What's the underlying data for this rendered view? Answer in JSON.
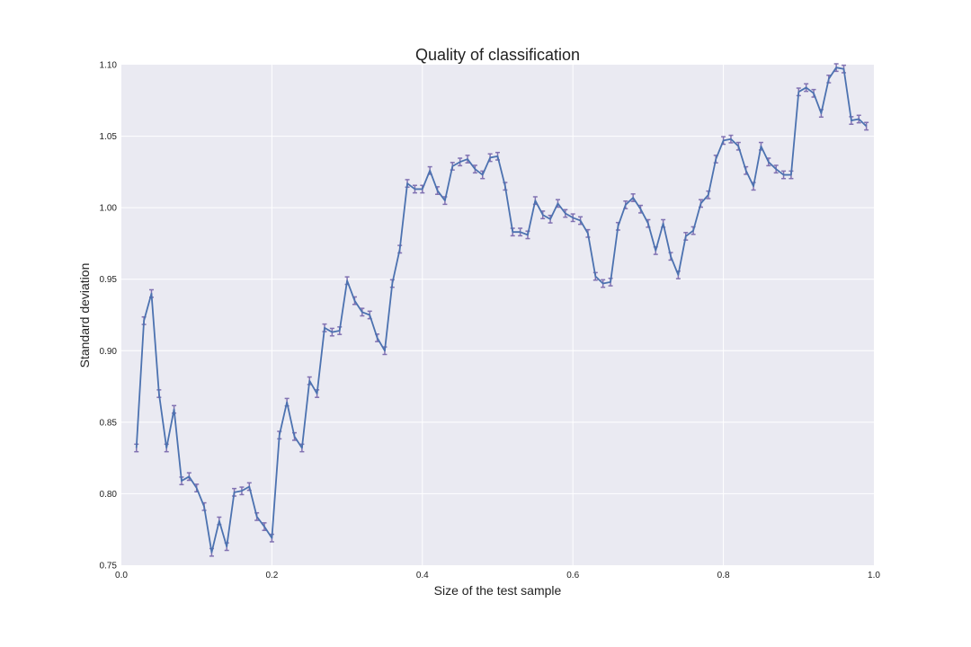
{
  "chart_data": {
    "type": "line",
    "title": "Quality of classification",
    "xlabel": "Size of the test sample",
    "ylabel": "Standard deviation",
    "xlim": [
      0.0,
      1.0
    ],
    "ylim": [
      0.75,
      1.1
    ],
    "grid": true,
    "x_ticks": [
      "0.0",
      "0.2",
      "0.4",
      "0.6",
      "0.8",
      "1.0"
    ],
    "y_ticks": [
      "0.75",
      "0.80",
      "0.85",
      "0.90",
      "0.95",
      "1.00",
      "1.05",
      "1.10"
    ],
    "colors": {
      "line": "#4c72b0",
      "error_bar": "#8172b2",
      "plot_background": "#eaeaf2",
      "grid": "#ffffff"
    },
    "series": [
      {
        "x": [
          0.02,
          0.03,
          0.04,
          0.05,
          0.06,
          0.07,
          0.08,
          0.09,
          0.1,
          0.11,
          0.12,
          0.13,
          0.14,
          0.15,
          0.16,
          0.17,
          0.18,
          0.19,
          0.2,
          0.21,
          0.22,
          0.23,
          0.24,
          0.25,
          0.26,
          0.27,
          0.28,
          0.29,
          0.3,
          0.31,
          0.32,
          0.33,
          0.34,
          0.35,
          0.36,
          0.37,
          0.38,
          0.39,
          0.4,
          0.41,
          0.42,
          0.43,
          0.44,
          0.45,
          0.46,
          0.47,
          0.48,
          0.49,
          0.5,
          0.51,
          0.52,
          0.53,
          0.54,
          0.55,
          0.56,
          0.57,
          0.58,
          0.59,
          0.6,
          0.61,
          0.62,
          0.63,
          0.64,
          0.65,
          0.66,
          0.67,
          0.68,
          0.69,
          0.7,
          0.71,
          0.72,
          0.73,
          0.74,
          0.75,
          0.76,
          0.77,
          0.78,
          0.79,
          0.8,
          0.81,
          0.82,
          0.83,
          0.84,
          0.85,
          0.86,
          0.87,
          0.88,
          0.89,
          0.9,
          0.91,
          0.92,
          0.93,
          0.94,
          0.95,
          0.96,
          0.97,
          0.98,
          0.99
        ],
        "values": [
          0.832,
          0.921,
          0.94,
          0.87,
          0.832,
          0.859,
          0.809,
          0.812,
          0.804,
          0.791,
          0.759,
          0.781,
          0.763,
          0.801,
          0.802,
          0.805,
          0.784,
          0.777,
          0.769,
          0.841,
          0.864,
          0.84,
          0.832,
          0.879,
          0.87,
          0.916,
          0.913,
          0.914,
          0.949,
          0.935,
          0.927,
          0.925,
          0.909,
          0.9,
          0.947,
          0.971,
          1.017,
          1.013,
          1.013,
          1.026,
          1.012,
          1.005,
          1.029,
          1.032,
          1.034,
          1.027,
          1.023,
          1.035,
          1.036,
          1.015,
          0.983,
          0.983,
          0.981,
          1.005,
          0.995,
          0.992,
          1.003,
          0.996,
          0.993,
          0.991,
          0.982,
          0.952,
          0.947,
          0.948,
          0.987,
          1.002,
          1.007,
          0.999,
          0.989,
          0.97,
          0.989,
          0.966,
          0.953,
          0.98,
          0.984,
          1.003,
          1.009,
          1.034,
          1.047,
          1.048,
          1.043,
          1.026,
          1.015,
          1.043,
          1.032,
          1.027,
          1.023,
          1.023,
          1.081,
          1.084,
          1.08,
          1.066,
          1.09,
          1.098,
          1.097,
          1.061,
          1.062,
          1.057
        ],
        "error": [
          0.002,
          0.002,
          0.002,
          0.002,
          0.002,
          0.002,
          0.002,
          0.002,
          0.002,
          0.002,
          0.002,
          0.002,
          0.002,
          0.002,
          0.002,
          0.002,
          0.002,
          0.002,
          0.002,
          0.002,
          0.002,
          0.002,
          0.002,
          0.002,
          0.002,
          0.002,
          0.002,
          0.002,
          0.002,
          0.002,
          0.002,
          0.002,
          0.002,
          0.002,
          0.002,
          0.002,
          0.002,
          0.002,
          0.002,
          0.002,
          0.002,
          0.002,
          0.002,
          0.002,
          0.002,
          0.002,
          0.002,
          0.002,
          0.002,
          0.002,
          0.002,
          0.002,
          0.002,
          0.002,
          0.002,
          0.002,
          0.002,
          0.002,
          0.002,
          0.002,
          0.002,
          0.002,
          0.002,
          0.002,
          0.002,
          0.002,
          0.002,
          0.002,
          0.002,
          0.002,
          0.002,
          0.002,
          0.002,
          0.002,
          0.002,
          0.002,
          0.002,
          0.002,
          0.002,
          0.002,
          0.002,
          0.002,
          0.002,
          0.002,
          0.002,
          0.002,
          0.002,
          0.002,
          0.002,
          0.002,
          0.002,
          0.002,
          0.002,
          0.002,
          0.002,
          0.002,
          0.002,
          0.002
        ]
      }
    ]
  }
}
